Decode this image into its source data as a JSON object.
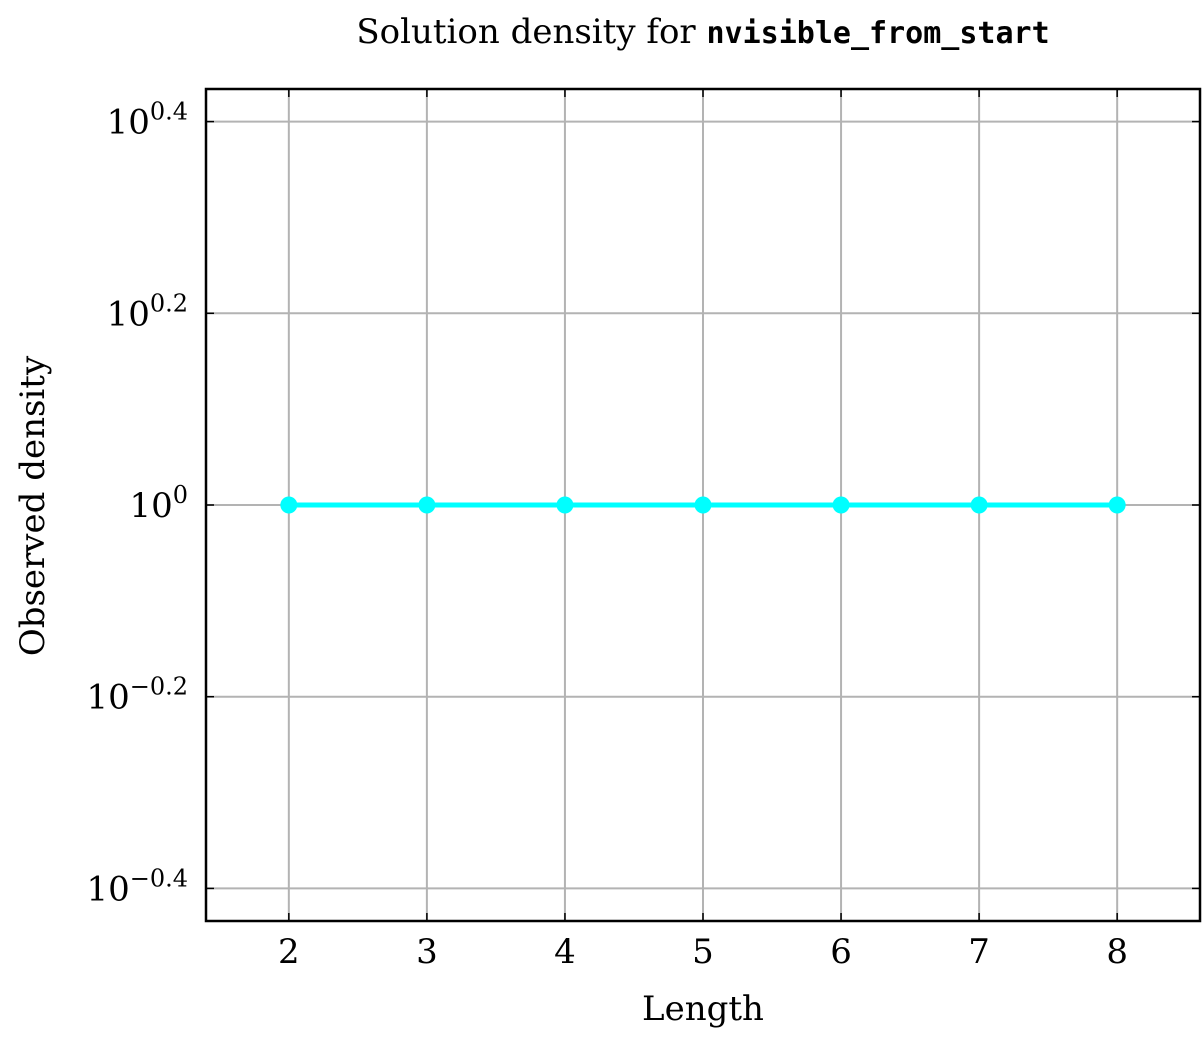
{
  "chart_data": {
    "type": "line",
    "title_prefix": "Solution density for ",
    "title_code": "nvisible_from_start",
    "xlabel": "Length",
    "ylabel": "Observed density",
    "x": [
      2,
      3,
      4,
      5,
      6,
      7,
      8
    ],
    "series": [
      {
        "values": [
          1,
          1,
          1,
          1,
          1,
          1,
          1
        ],
        "color": "#00ffff"
      }
    ],
    "xlim": [
      1.4,
      8.6
    ],
    "ylim_log10": [
      -0.434,
      0.434
    ],
    "y_scale": "log",
    "x_ticks": [
      2,
      3,
      4,
      5,
      6,
      7,
      8
    ],
    "y_ticks": [
      {
        "exp": -0.4,
        "base": "10",
        "sup": "−0.4"
      },
      {
        "exp": -0.2,
        "base": "10",
        "sup": "−0.2"
      },
      {
        "exp": 0,
        "base": "10",
        "sup": "0"
      },
      {
        "exp": 0.2,
        "base": "10",
        "sup": "0.2"
      },
      {
        "exp": 0.4,
        "base": "10",
        "sup": "0.4"
      }
    ],
    "grid": true,
    "grid_color": "#b3b3b3"
  }
}
